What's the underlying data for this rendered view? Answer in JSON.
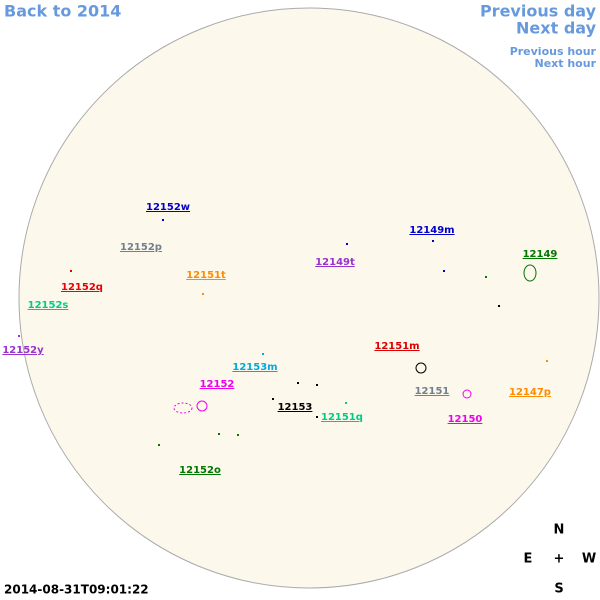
{
  "nav": {
    "back": "Back to 2014",
    "previous_day": "Previous day",
    "next_day": "Next day",
    "previous_hour": "Previous hour",
    "next_hour": "Next hour"
  },
  "regions": [
    {
      "label": "12152w",
      "color": "#0000cc"
    },
    {
      "label": "12149m",
      "color": "#0000cc"
    },
    {
      "label": "12152p",
      "color": "#708090"
    },
    {
      "label": "12149t",
      "color": "#9933cc"
    },
    {
      "label": "12149",
      "color": "#007700"
    },
    {
      "label": "12151t",
      "color": "#ff8c00"
    },
    {
      "label": "12152q",
      "color": "#ee0000"
    },
    {
      "label": "12152s",
      "color": "#00cc88"
    },
    {
      "label": "12152y",
      "color": "#9933cc"
    },
    {
      "label": "12151m",
      "color": "#dd0000"
    },
    {
      "label": "12153m",
      "color": "#00aadd"
    },
    {
      "label": "12152",
      "color": "#ee00ee"
    },
    {
      "label": "12151",
      "color": "#708090"
    },
    {
      "label": "12147p",
      "color": "#ff8c00"
    },
    {
      "label": "12153",
      "color": "#000000"
    },
    {
      "label": "12151q",
      "color": "#00cc88"
    },
    {
      "label": "12150",
      "color": "#ee00ee"
    },
    {
      "label": "12152o",
      "color": "#007700"
    }
  ],
  "compass": {
    "north": "N",
    "east": "E",
    "center": "+",
    "west": "W",
    "south": "S"
  },
  "timestamp": "2014-08-31T09:01:22"
}
